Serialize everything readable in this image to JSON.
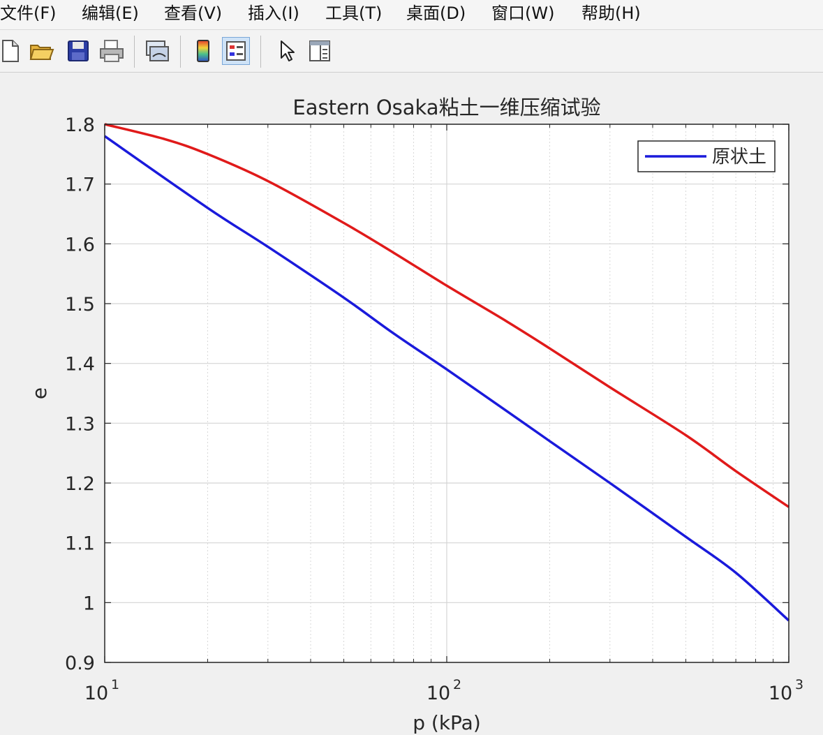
{
  "menu": {
    "items": [
      {
        "label": "文件(F)"
      },
      {
        "label": "编辑(E)"
      },
      {
        "label": "查看(V)"
      },
      {
        "label": "插入(I)"
      },
      {
        "label": "工具(T)"
      },
      {
        "label": "桌面(D)"
      },
      {
        "label": "窗口(W)"
      },
      {
        "label": "帮助(H)"
      }
    ]
  },
  "toolbar": {
    "icons": [
      "new-file-icon",
      "open-folder-icon",
      "save-icon",
      "print-icon",
      "link-plot-icon",
      "colorbar-icon",
      "legend-icon",
      "pointer-icon",
      "property-editor-icon"
    ]
  },
  "chart_data": {
    "type": "line",
    "title": "Eastern Osaka粘土一维压缩试验",
    "xlabel": "p (kPa)",
    "ylabel": "e",
    "xscale": "log",
    "xlim": [
      10,
      1000
    ],
    "ylim": [
      0.9,
      1.8
    ],
    "xticks": [
      {
        "value": 10,
        "base": "10",
        "exp": "1"
      },
      {
        "value": 100,
        "base": "10",
        "exp": "2"
      },
      {
        "value": 1000,
        "base": "10",
        "exp": "3"
      }
    ],
    "yticks": [
      "0.9",
      "1",
      "1.1",
      "1.2",
      "1.3",
      "1.4",
      "1.5",
      "1.6",
      "1.7",
      "1.8"
    ],
    "grid": true,
    "legend": {
      "location": "top-right",
      "entries": [
        {
          "label": "原状土",
          "color": "#1a1adb"
        }
      ]
    },
    "series": [
      {
        "color": "#1a1adb",
        "x": [
          10,
          20,
          30,
          50,
          70,
          100,
          150,
          200,
          300,
          500,
          700,
          1000
        ],
        "y": [
          1.78,
          1.66,
          1.595,
          1.51,
          1.45,
          1.39,
          1.32,
          1.27,
          1.2,
          1.11,
          1.05,
          0.97
        ]
      },
      {
        "color": "#e01a1a",
        "x": [
          10,
          15,
          20,
          30,
          50,
          70,
          100,
          150,
          200,
          300,
          500,
          700,
          1000
        ],
        "y": [
          1.8,
          1.775,
          1.75,
          1.705,
          1.635,
          1.585,
          1.53,
          1.47,
          1.425,
          1.36,
          1.28,
          1.22,
          1.16
        ]
      }
    ]
  }
}
